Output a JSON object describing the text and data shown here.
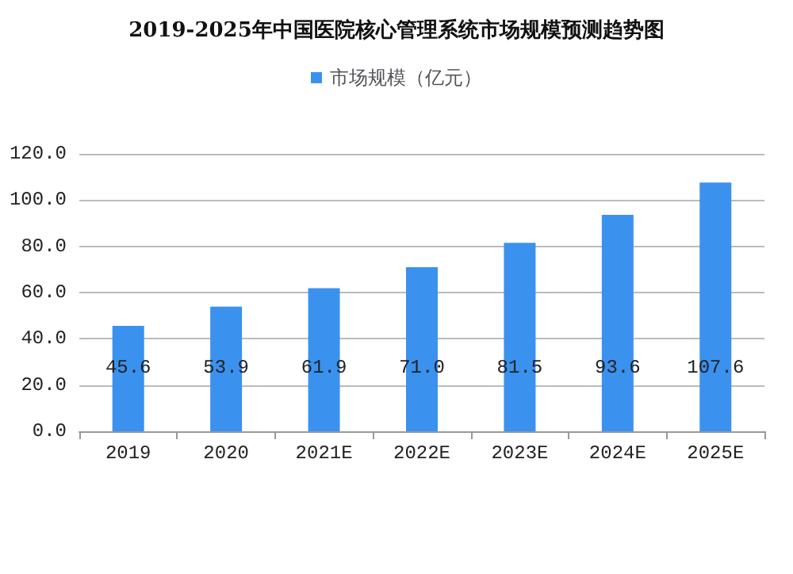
{
  "chart_data": {
    "type": "bar",
    "title": "2019-2025年中国医院核心管理系统市场规模预测趋势图",
    "categories": [
      "2019",
      "2020",
      "2021E",
      "2022E",
      "2023E",
      "2024E",
      "2025E"
    ],
    "series": [
      {
        "name": "市场规模（亿元）",
        "color": "#3a92ee",
        "values": [
          45.6,
          53.9,
          61.9,
          71.0,
          81.5,
          93.6,
          107.6
        ],
        "value_labels": [
          "45.6",
          "53.9",
          "61.9",
          "71.0",
          "81.5",
          "93.6",
          "107.6"
        ]
      }
    ],
    "ylim": [
      0,
      120
    ],
    "yticks": [
      {
        "value": 0,
        "label": "0.0"
      },
      {
        "value": 20,
        "label": "20.0"
      },
      {
        "value": 40,
        "label": "40.0"
      },
      {
        "value": 60,
        "label": "60.0"
      },
      {
        "value": 80,
        "label": "80.0"
      },
      {
        "value": 100,
        "label": "100.0"
      },
      {
        "value": 120,
        "label": "120.0"
      }
    ],
    "grid": "y",
    "legend": "top"
  }
}
